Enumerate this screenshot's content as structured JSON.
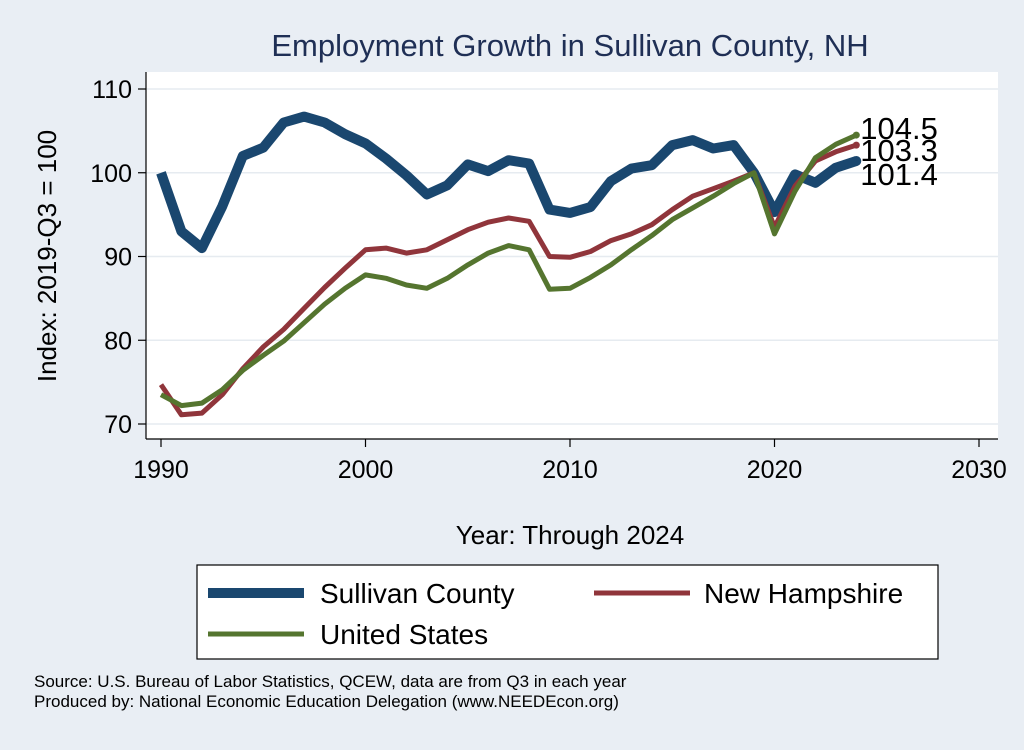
{
  "chart_data": {
    "type": "line",
    "title": "Employment Growth in Sullivan County, NH",
    "xlabel": "Year: Through 2024",
    "ylabel": "Index: 2019-Q3 = 100",
    "xlim": [
      1990,
      2030
    ],
    "ylim": [
      70,
      110
    ],
    "x_ticks": [
      1990,
      2000,
      2010,
      2020,
      2030
    ],
    "y_ticks": [
      70,
      80,
      90,
      100,
      110
    ],
    "grid": "horizontal",
    "legend": "bottom",
    "x": [
      1990,
      1991,
      1992,
      1993,
      1994,
      1995,
      1996,
      1997,
      1998,
      1999,
      2000,
      2001,
      2002,
      2003,
      2004,
      2005,
      2006,
      2007,
      2008,
      2009,
      2010,
      2011,
      2012,
      2013,
      2014,
      2015,
      2016,
      2017,
      2018,
      2019,
      2020,
      2021,
      2022,
      2023,
      2024
    ],
    "series": [
      {
        "name": "Sullivan  County",
        "color": "#1a476f",
        "width": 10,
        "end_label": "101.4",
        "values": [
          100.0,
          93.0,
          91.0,
          96.0,
          102.0,
          103.0,
          106.0,
          106.7,
          106.0,
          104.6,
          103.5,
          101.7,
          99.7,
          97.4,
          98.5,
          101.0,
          100.2,
          101.5,
          101.1,
          95.6,
          95.2,
          95.9,
          99.0,
          100.5,
          100.9,
          103.3,
          103.9,
          102.9,
          103.3,
          100.0,
          95.3,
          99.8,
          98.8,
          100.6,
          101.4
        ]
      },
      {
        "name": "New Hampshire",
        "color": "#90353b",
        "width": 5,
        "end_label": "103.3",
        "values": [
          74.7,
          71.1,
          71.3,
          73.5,
          76.6,
          79.2,
          81.3,
          83.8,
          86.3,
          88.6,
          90.8,
          91.0,
          90.4,
          90.8,
          92.0,
          93.2,
          94.1,
          94.6,
          94.2,
          90.0,
          89.9,
          90.6,
          91.9,
          92.7,
          93.8,
          95.6,
          97.2,
          98.1,
          99.0,
          100.0,
          93.5,
          98.4,
          101.4,
          102.5,
          103.3
        ]
      },
      {
        "name": "United States",
        "color": "#55752f",
        "width": 5,
        "end_label": "104.5",
        "values": [
          73.5,
          72.2,
          72.5,
          74.1,
          76.4,
          78.2,
          79.9,
          82.1,
          84.3,
          86.2,
          87.8,
          87.4,
          86.6,
          86.2,
          87.4,
          89.0,
          90.4,
          91.3,
          90.8,
          86.1,
          86.2,
          87.5,
          89.0,
          90.8,
          92.5,
          94.4,
          95.8,
          97.2,
          98.7,
          100.0,
          92.7,
          97.8,
          101.8,
          103.4,
          104.5
        ]
      }
    ]
  },
  "source_line": "Source: U.S. Bureau of Labor Statistics, QCEW, data are from Q3 in each year",
  "produced_line": "Produced by: National Economic Education Delegation (www.NEEDEcon.org)"
}
